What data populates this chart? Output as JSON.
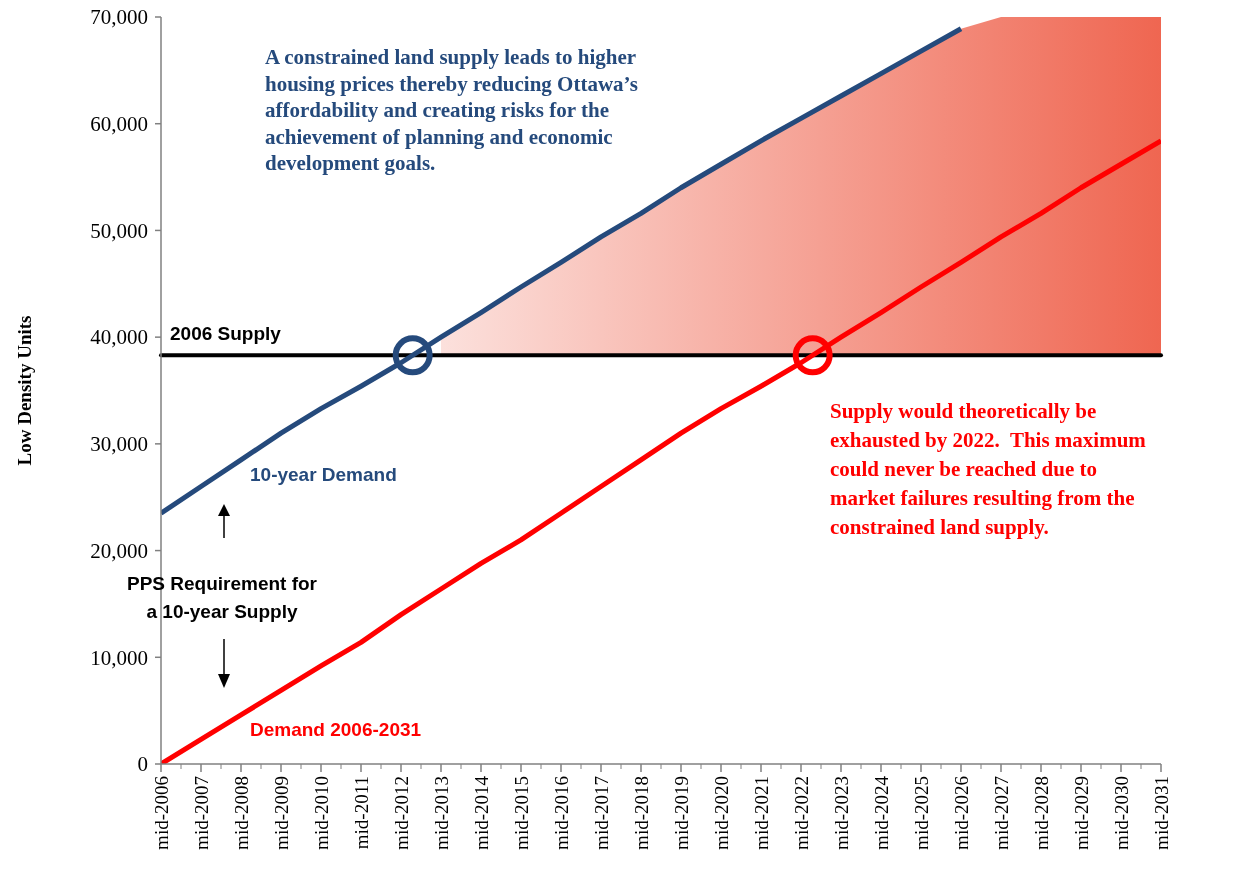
{
  "chart_data": {
    "type": "line",
    "ylabel": "Low Density Units",
    "categories": [
      "mid-2006",
      "mid-2007",
      "mid-2008",
      "mid-2009",
      "mid-2010",
      "mid-2011",
      "mid-2012",
      "mid-2013",
      "mid-2014",
      "mid-2015",
      "mid-2016",
      "mid-2017",
      "mid-2018",
      "mid-2019",
      "mid-2020",
      "mid-2021",
      "mid-2022",
      "mid-2023",
      "mid-2024",
      "mid-2025",
      "mid-2026",
      "mid-2027",
      "mid-2028",
      "mid-2029",
      "mid-2030",
      "mid-2031"
    ],
    "series": [
      {
        "name": "10-year Demand",
        "color": "#254a7c",
        "values": [
          23500,
          26000,
          28500,
          31000,
          33300,
          35400,
          37600,
          40000,
          42300,
          44700,
          47000,
          49400,
          51600,
          54000,
          56200,
          58400,
          60500,
          62600,
          64700,
          66800,
          68900,
          null,
          null,
          null,
          null,
          null
        ]
      },
      {
        "name": "Demand 2006-2031",
        "color": "#ff0000",
        "values": [
          0,
          2300,
          4600,
          6900,
          9200,
          11400,
          14000,
          16400,
          18800,
          21000,
          23500,
          26000,
          28500,
          31000,
          33300,
          35400,
          37600,
          40000,
          42300,
          44700,
          47000,
          49400,
          51600,
          54000,
          56200,
          58400
        ]
      },
      {
        "type": "area",
        "color": "#ef6651",
        "values": [
          null,
          null,
          null,
          null,
          null,
          null,
          null,
          40000,
          42300,
          44700,
          47000,
          49400,
          51600,
          54000,
          56200,
          58400,
          60500,
          62600,
          64700,
          66800,
          68900,
          70000,
          70000,
          70000,
          70000,
          70000
        ]
      }
    ],
    "ylim": [
      0,
      70000
    ],
    "yticks": [
      {
        "value": 0,
        "label": "0"
      },
      {
        "value": 10000,
        "label": "10,000"
      },
      {
        "value": 20000,
        "label": "20,000"
      },
      {
        "value": 30000,
        "label": "30,000"
      },
      {
        "value": 40000,
        "label": "40,000"
      },
      {
        "value": 50000,
        "label": "50,000"
      },
      {
        "value": 60000,
        "label": "60,000"
      },
      {
        "value": 70000,
        "label": "70,000"
      }
    ],
    "ref_lines": [
      {
        "axis": "y",
        "value": 38300,
        "label": "2006 Supply",
        "color": "#000000"
      }
    ],
    "annotations": [
      "A constrained land supply leads to higher housing prices thereby reducing Ottawa’s affordability and creating risks for the achievement of planning and economic development goals.",
      "Supply would theoretically be exhausted by 2022.  This maximum could never be reached due to market failures resulting from the constrained land supply.",
      "PPS Requirement for a 10-year Supply"
    ],
    "grid": false
  }
}
